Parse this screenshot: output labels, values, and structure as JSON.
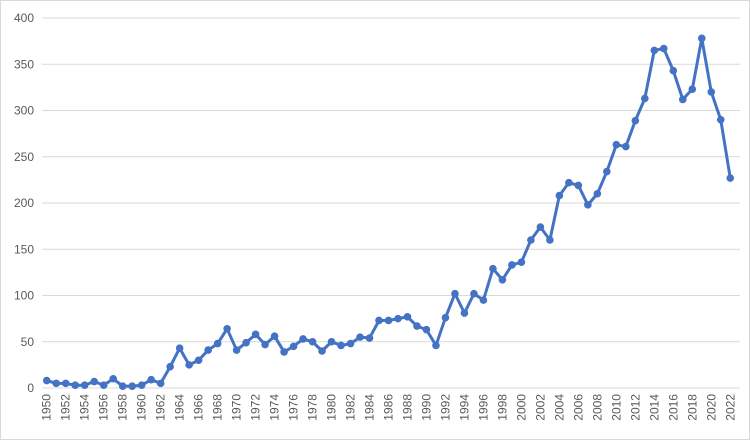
{
  "chart_data": {
    "type": "line",
    "categories": [
      "1950",
      null,
      "1952",
      null,
      "1954",
      null,
      "1956",
      null,
      "1958",
      null,
      "1960",
      null,
      "1962",
      null,
      "1964",
      null,
      "1966",
      null,
      "1968",
      null,
      "1970",
      null,
      "1972",
      null,
      "1974",
      null,
      "1976",
      null,
      "1978",
      null,
      "1980",
      null,
      "1982",
      null,
      "1984",
      null,
      "1986",
      null,
      "1988",
      null,
      "1990",
      null,
      "1992",
      null,
      "1994",
      null,
      "1996",
      null,
      "1998",
      null,
      "2000",
      null,
      "2002",
      null,
      "2004",
      null,
      "2006",
      null,
      "2008",
      null,
      "2010",
      null,
      "2012",
      null,
      "2014",
      null,
      "2016",
      null,
      "2018",
      null,
      "2020",
      null,
      "2022"
    ],
    "values": [
      8,
      5,
      5,
      3,
      3,
      7,
      3,
      10,
      2,
      2,
      3,
      9,
      5,
      23,
      43,
      25,
      30,
      41,
      48,
      64,
      41,
      49,
      58,
      47,
      56,
      39,
      45,
      53,
      50,
      40,
      50,
      46,
      48,
      55,
      54,
      73,
      73,
      75,
      77,
      67,
      63,
      46,
      76,
      102,
      81,
      102,
      95,
      129,
      117,
      133,
      136,
      160,
      174,
      160,
      208,
      222,
      219,
      198,
      210,
      234,
      263,
      261,
      289,
      313,
      365,
      367,
      343,
      312,
      323,
      378,
      320,
      290,
      227
    ],
    "color": "#4472c4",
    "ylim": [
      0,
      400
    ],
    "yticks": [
      0,
      50,
      100,
      150,
      200,
      250,
      300,
      350,
      400
    ],
    "grid": true
  }
}
